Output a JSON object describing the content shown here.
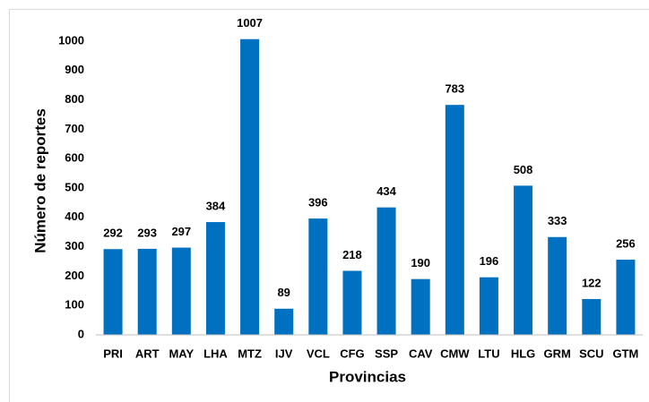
{
  "chart_data": {
    "type": "bar",
    "categories": [
      "PRI",
      "ART",
      "MAY",
      "LHA",
      "MTZ",
      "IJV",
      "VCL",
      "CFG",
      "SSP",
      "CAV",
      "CMW",
      "LTU",
      "HLG",
      "GRM",
      "SCU",
      "GTM"
    ],
    "values": [
      292,
      293,
      297,
      384,
      1007,
      89,
      396,
      218,
      434,
      190,
      783,
      196,
      508,
      333,
      122,
      256
    ],
    "color": "#0070c0",
    "ylim": [
      0,
      1000
    ],
    "yticks": [
      0,
      100,
      200,
      300,
      400,
      500,
      600,
      700,
      800,
      900,
      1000
    ],
    "xlabel": "Provincias",
    "ylabel": "Número de reportes",
    "grid": false
  }
}
